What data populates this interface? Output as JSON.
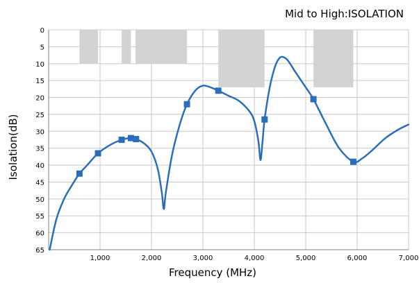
{
  "chart_data": {
    "type": "line",
    "title": "Mid to High:ISOLATION",
    "xlabel": "Frequency (MHz)",
    "ylabel": "Isolation(dB)",
    "xlim": [
      0,
      7000
    ],
    "ylim": [
      0,
      65
    ],
    "y_inverted": true,
    "grid": true,
    "x_ticks": [
      1000,
      2000,
      3000,
      4000,
      5000,
      6000,
      7000
    ],
    "x_tick_labels": [
      "1,000",
      "2,000",
      "3,000",
      "4,000",
      "5,000",
      "6,000",
      "7,000"
    ],
    "y_ticks": [
      0,
      5,
      10,
      15,
      20,
      25,
      30,
      35,
      40,
      45,
      50,
      55,
      60,
      65
    ],
    "y_tick_labels": [
      "0",
      "5",
      "10",
      "15",
      "20",
      "25",
      "30",
      "35",
      "40",
      "45",
      "50",
      "55",
      "60",
      "65"
    ],
    "colors": {
      "line": "#2a6ebb",
      "marker": "#2a6ebb",
      "band": "#d3d3d3",
      "grid": "#c8c8c8",
      "axis": "#7f7f7f"
    },
    "spec_bands": [
      {
        "x_start": 600,
        "x_end": 960,
        "limit": 10
      },
      {
        "x_start": 1420,
        "x_end": 1600,
        "limit": 10
      },
      {
        "x_start": 1690,
        "x_end": 2690,
        "limit": 10
      },
      {
        "x_start": 3300,
        "x_end": 4200,
        "limit": 17
      },
      {
        "x_start": 5150,
        "x_end": 5925,
        "limit": 17
      }
    ],
    "series": [
      {
        "values": [
          [
            20,
            65
          ],
          [
            150,
            56
          ],
          [
            300,
            50
          ],
          [
            450,
            46
          ],
          [
            600,
            42.5
          ],
          [
            750,
            40
          ],
          [
            960,
            36.5
          ],
          [
            1200,
            34
          ],
          [
            1420,
            32.5
          ],
          [
            1600,
            32
          ],
          [
            1700,
            32.3
          ],
          [
            1850,
            33.5
          ],
          [
            2000,
            36
          ],
          [
            2120,
            41
          ],
          [
            2200,
            48
          ],
          [
            2240,
            53
          ],
          [
            2280,
            48
          ],
          [
            2400,
            37
          ],
          [
            2550,
            28
          ],
          [
            2690,
            22
          ],
          [
            2850,
            18
          ],
          [
            3000,
            16.5
          ],
          [
            3150,
            17
          ],
          [
            3300,
            18
          ],
          [
            3500,
            19.5
          ],
          [
            3700,
            21
          ],
          [
            3900,
            24
          ],
          [
            4000,
            27
          ],
          [
            4080,
            33
          ],
          [
            4120,
            38.5
          ],
          [
            4160,
            33
          ],
          [
            4200,
            26.5
          ],
          [
            4300,
            17
          ],
          [
            4400,
            11
          ],
          [
            4480,
            8.5
          ],
          [
            4550,
            8
          ],
          [
            4650,
            9
          ],
          [
            4800,
            12.5
          ],
          [
            5000,
            17
          ],
          [
            5150,
            20.5
          ],
          [
            5400,
            28
          ],
          [
            5650,
            35
          ],
          [
            5925,
            39
          ],
          [
            6100,
            38
          ],
          [
            6300,
            35.5
          ],
          [
            6550,
            32
          ],
          [
            6800,
            29.5
          ],
          [
            7000,
            28
          ]
        ]
      }
    ],
    "markers": [
      [
        600,
        42.5
      ],
      [
        960,
        36.5
      ],
      [
        1420,
        32.5
      ],
      [
        1600,
        32
      ],
      [
        1700,
        32.3
      ],
      [
        2690,
        22
      ],
      [
        3300,
        18
      ],
      [
        4200,
        26.5
      ],
      [
        5150,
        20.5
      ],
      [
        5925,
        39
      ]
    ]
  }
}
